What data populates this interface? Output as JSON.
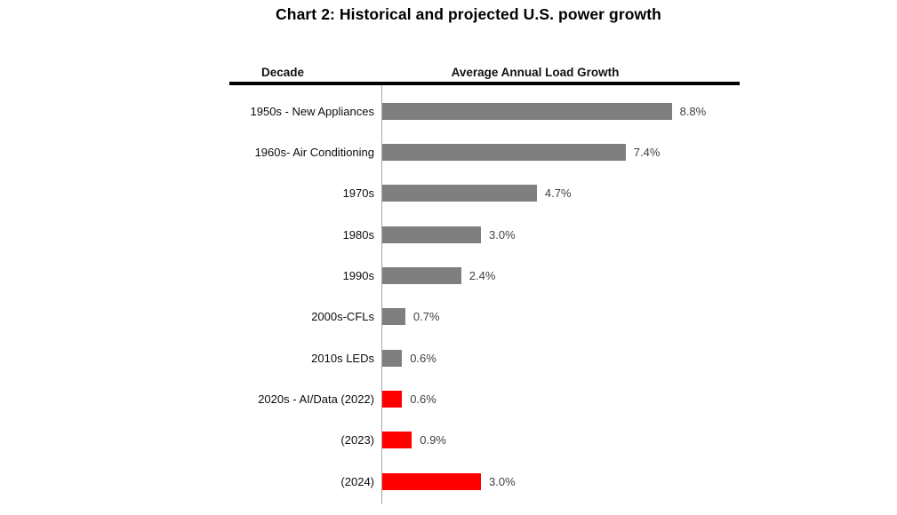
{
  "title": "Chart 2: Historical and projected U.S. power growth",
  "table_headers": {
    "decade": "Decade",
    "load_growth": "Average Annual Load Growth"
  },
  "colors": {
    "historical_bar": "#7f7f7f",
    "projected_bar": "#ff0000",
    "axis_line": "#a6a6a6",
    "header_rule": "#000000",
    "value_text": "#404040",
    "label_text": "#0d0d0d"
  },
  "chart_data": {
    "type": "bar",
    "orientation": "horizontal",
    "title": "Chart 2: Historical and projected U.S. power growth",
    "xlabel": "Average Annual Load Growth",
    "ylabel": "Decade",
    "unit": "%",
    "xlim": [
      0,
      9.5
    ],
    "grid": false,
    "legend_position": "none",
    "value_label_position": "outside-right",
    "categories": [
      "1950s - New Appliances",
      "1960s- Air Conditioning",
      "1970s",
      "1980s",
      "1990s",
      "2000s-CFLs",
      "2010s LEDs",
      "2020s - AI/Data (2022)",
      "(2023)",
      "(2024)"
    ],
    "values": [
      8.8,
      7.4,
      4.7,
      3.0,
      2.4,
      0.7,
      0.6,
      0.6,
      0.9,
      3.0
    ],
    "value_labels": [
      "8.8%",
      "7.4%",
      "4.7%",
      "3.0%",
      "2.4%",
      "0.7%",
      "0.6%",
      "0.6%",
      "0.9%",
      "3.0%"
    ],
    "bar_groups": [
      "historical",
      "historical",
      "historical",
      "historical",
      "historical",
      "historical",
      "historical",
      "projected",
      "projected",
      "projected"
    ]
  }
}
